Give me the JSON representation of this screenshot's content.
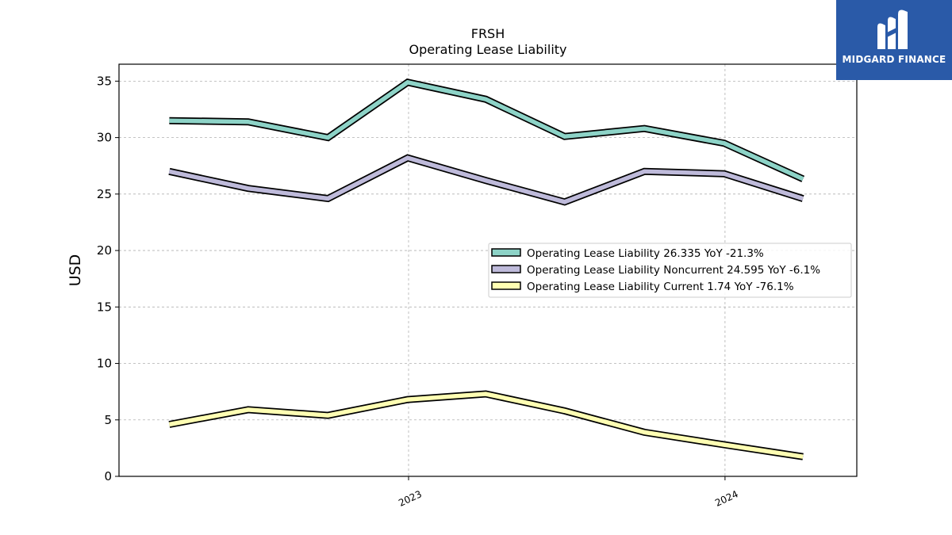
{
  "brand": {
    "name": "MIDGARD FINANCE",
    "logo_color": "#2a5aa8"
  },
  "chart_data": {
    "type": "line",
    "title": "FRSH",
    "subtitle": "Operating Lease Liability",
    "xlabel": "",
    "ylabel": "USD",
    "ylim": [
      0,
      36.5
    ],
    "yticks": [
      0,
      5,
      10,
      15,
      20,
      25,
      30,
      35
    ],
    "xticks": [
      {
        "label": "2023",
        "x": "2023-01-01"
      },
      {
        "label": "2024",
        "x": "2024-01-01"
      }
    ],
    "xlim": [
      "2022-02-01",
      "2024-06-01"
    ],
    "grid": true,
    "legend_position": "center-right",
    "x": [
      "2022-03-31",
      "2022-06-30",
      "2022-09-30",
      "2022-12-31",
      "2023-03-31",
      "2023-06-30",
      "2023-09-30",
      "2023-12-31",
      "2024-03-31"
    ],
    "series": [
      {
        "name": "Operating Lease Liability",
        "legend": "Operating Lease Liability  26.335 YoY -21.3%",
        "color": "#8dd3c7",
        "values": [
          31.5,
          31.4,
          30.0,
          34.9,
          33.4,
          30.1,
          30.8,
          29.5,
          26.335
        ]
      },
      {
        "name": "Operating Lease Liability Noncurrent",
        "legend": "Operating Lease Liability Noncurrent  24.595 YoY -6.1%",
        "color": "#bebada",
        "values": [
          27.0,
          25.5,
          24.6,
          28.2,
          26.2,
          24.3,
          27.0,
          26.8,
          24.595
        ]
      },
      {
        "name": "Operating Lease Liability Current",
        "legend": "Operating Lease Liability Current  1.74 YoY -76.1%",
        "color": "#ffffb3",
        "values": [
          4.6,
          5.9,
          5.4,
          6.8,
          7.3,
          5.8,
          3.9,
          2.8,
          1.74
        ]
      }
    ]
  }
}
